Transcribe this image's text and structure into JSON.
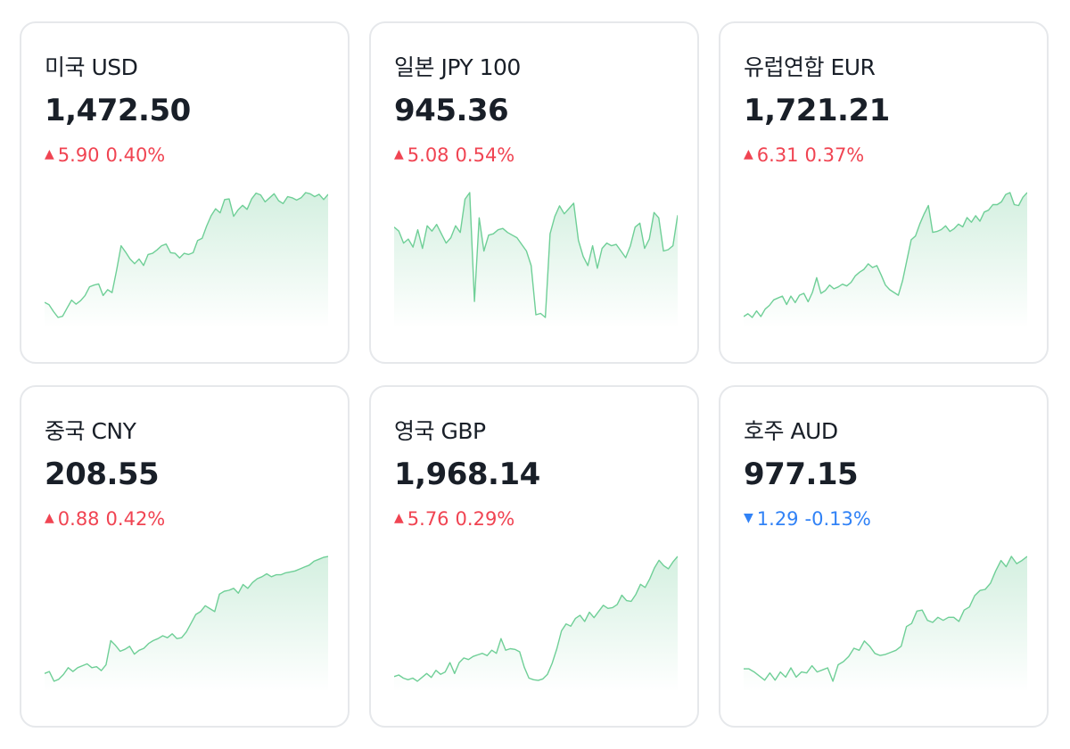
{
  "cards": [
    {
      "name": "미국 USD",
      "rate": "1,472.50",
      "direction": "up",
      "change": "5.90",
      "percent": "0.40%",
      "series": [
        1431.2,
        1430.4,
        1428.0,
        1426.0,
        1426.4,
        1429.2,
        1432.0,
        1430.6,
        1431.8,
        1433.6,
        1436.6,
        1437.2,
        1437.6,
        1433.6,
        1435.6,
        1434.6,
        1442.4,
        1450.8,
        1448.6,
        1446.2,
        1444.6,
        1446.2,
        1444.0,
        1447.8,
        1448.2,
        1449.4,
        1450.8,
        1451.4,
        1448.4,
        1448.2,
        1446.6,
        1448.2,
        1447.8,
        1448.4,
        1452.6,
        1453.4,
        1457.6,
        1461.2,
        1463.6,
        1462.2,
        1466.8,
        1467.0,
        1461.0,
        1463.2,
        1464.8,
        1463.4,
        1467.0,
        1469.0,
        1468.4,
        1466.0,
        1467.4,
        1468.8,
        1466.4,
        1465.4,
        1467.8,
        1467.4,
        1466.6,
        1467.4,
        1469.2,
        1468.8,
        1467.8,
        1468.6,
        1466.8,
        1468.6
      ]
    },
    {
      "name": "일본 JPY 100",
      "rate": "945.36",
      "direction": "up",
      "change": "5.08",
      "percent": "0.54%",
      "series": [
        943.2,
        942.6,
        940.8,
        941.4,
        940.2,
        942.8,
        940.0,
        943.4,
        942.6,
        943.6,
        942.2,
        940.8,
        941.6,
        943.4,
        942.4,
        947.4,
        948.4,
        932.0,
        944.6,
        939.6,
        942.0,
        942.2,
        942.8,
        943.0,
        942.4,
        942.0,
        941.6,
        940.6,
        939.6,
        937.4,
        930.0,
        930.2,
        929.6,
        942.2,
        944.8,
        946.4,
        945.2,
        946.0,
        946.8,
        941.2,
        938.8,
        937.4,
        940.4,
        937.0,
        940.0,
        940.8,
        940.4,
        940.6,
        939.6,
        938.6,
        940.4,
        943.2,
        943.8,
        940.0,
        941.4,
        945.4,
        944.6,
        939.6,
        939.8,
        940.4,
        945.0
      ]
    },
    {
      "name": "유럽연합 EUR",
      "rate": "1,721.21",
      "direction": "up",
      "change": "6.31",
      "percent": "0.37%",
      "series": [
        1694.6,
        1695.2,
        1694.4,
        1695.8,
        1694.6,
        1696.2,
        1697.0,
        1698.2,
        1698.6,
        1699.0,
        1697.2,
        1699.0,
        1697.6,
        1699.2,
        1699.6,
        1697.8,
        1699.8,
        1703.0,
        1699.6,
        1700.2,
        1701.4,
        1700.6,
        1701.0,
        1701.6,
        1701.2,
        1702.0,
        1703.4,
        1704.2,
        1704.8,
        1706.0,
        1705.2,
        1705.6,
        1703.6,
        1701.4,
        1700.4,
        1699.8,
        1699.2,
        1702.4,
        1706.8,
        1711.2,
        1712.0,
        1714.6,
        1716.8,
        1718.6,
        1712.8,
        1713.0,
        1713.4,
        1714.2,
        1713.0,
        1713.6,
        1714.6,
        1714.0,
        1716.0,
        1715.0,
        1716.4,
        1715.2,
        1717.2,
        1717.6,
        1718.8,
        1718.8,
        1719.4,
        1721.0,
        1721.4,
        1718.8,
        1718.6,
        1720.4,
        1721.4
      ]
    },
    {
      "name": "중국 CNY",
      "rate": "208.55",
      "direction": "up",
      "change": "0.88",
      "percent": "0.42%",
      "series": [
        204.58,
        204.62,
        204.42,
        204.46,
        204.56,
        204.7,
        204.62,
        204.7,
        204.74,
        204.78,
        204.7,
        204.72,
        204.64,
        204.76,
        205.26,
        205.16,
        205.04,
        205.08,
        205.14,
        204.98,
        205.06,
        205.1,
        205.2,
        205.26,
        205.3,
        205.36,
        205.32,
        205.4,
        205.3,
        205.32,
        205.44,
        205.62,
        205.8,
        205.86,
        205.98,
        205.92,
        205.86,
        206.22,
        206.28,
        206.3,
        206.34,
        206.24,
        206.42,
        206.34,
        206.46,
        206.54,
        206.58,
        206.64,
        206.58,
        206.62,
        206.62,
        206.66,
        206.68,
        206.7,
        206.74,
        206.78,
        206.82,
        206.9,
        206.94,
        206.98,
        207.0
      ]
    },
    {
      "name": "영국 GBP",
      "rate": "1,968.14",
      "direction": "up",
      "change": "5.76",
      "percent": "0.29%",
      "series": [
        1929.8,
        1930.2,
        1929.4,
        1929.0,
        1929.4,
        1928.6,
        1929.6,
        1930.6,
        1929.6,
        1931.4,
        1930.4,
        1931.0,
        1933.4,
        1930.6,
        1933.4,
        1934.6,
        1934.2,
        1935.0,
        1935.4,
        1935.8,
        1935.2,
        1936.6,
        1935.8,
        1939.6,
        1936.6,
        1937.0,
        1936.8,
        1936.2,
        1932.2,
        1929.4,
        1929.0,
        1928.8,
        1929.2,
        1930.4,
        1933.2,
        1937.0,
        1941.6,
        1943.4,
        1942.8,
        1944.8,
        1945.6,
        1944.0,
        1946.4,
        1945.0,
        1946.6,
        1948.2,
        1947.4,
        1947.6,
        1948.4,
        1950.8,
        1949.4,
        1949.2,
        1951.0,
        1953.6,
        1952.8,
        1955.0,
        1957.8,
        1959.8,
        1958.4,
        1957.6,
        1959.4,
        1960.8
      ]
    },
    {
      "name": "호주 AUD",
      "rate": "977.15",
      "direction": "down",
      "change": "1.29",
      "percent": "-0.13%",
      "series": [
        954.6,
        954.6,
        954.0,
        953.2,
        952.4,
        953.8,
        952.4,
        954.0,
        953.0,
        954.8,
        953.0,
        954.0,
        953.8,
        955.2,
        954.0,
        954.4,
        954.8,
        952.2,
        955.4,
        956.0,
        957.0,
        958.6,
        958.2,
        960.0,
        959.0,
        957.6,
        957.2,
        957.4,
        957.8,
        958.2,
        959.0,
        962.8,
        963.4,
        965.8,
        966.0,
        964.0,
        963.6,
        964.6,
        964.0,
        964.6,
        964.6,
        963.8,
        966.0,
        966.6,
        968.8,
        969.8,
        970.0,
        971.2,
        973.6,
        975.6,
        974.4,
        976.4,
        975.0,
        975.6,
        976.4
      ]
    }
  ]
}
